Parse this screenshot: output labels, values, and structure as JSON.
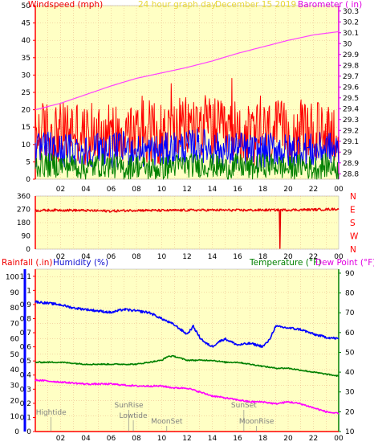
{
  "title": "24 hour graph day",
  "date": "December 15 2019",
  "colors": {
    "background": "#ffffff",
    "plot_bg": "#ffffc4",
    "grid": "#e8b080",
    "title": "#e8d838",
    "wind_label": "#f00000",
    "baro_label": "#e000e0",
    "rain_label": "#f00000",
    "humidity_label": "#1010d0",
    "temp_label": "#008000",
    "dew_label": "#e000e0",
    "wind_speed": "#ff0000",
    "wind_avg": "#0000ff",
    "wind_calm": "#008000",
    "baro_line": "#ff40ff",
    "direction": "#e80000",
    "humidity": "#0000ff",
    "temperature": "#008000",
    "dewpoint": "#ff00ff",
    "event_text": "#808080",
    "axis_red": "#ff0000",
    "axis_blue": "#0000ff",
    "axis_green": "#008000"
  },
  "x_labels": [
    "02",
    "04",
    "06",
    "08",
    "10",
    "12",
    "14",
    "16",
    "18",
    "20",
    "22",
    "00"
  ],
  "panel1": {
    "left_label": "Windspeed (mph)",
    "right_label": "Barometer ( in)",
    "left_ticks": [
      "0",
      "5",
      "10",
      "15",
      "20",
      "25",
      "30",
      "35",
      "40",
      "45",
      "50"
    ],
    "right_ticks": [
      "28.8",
      "28.9",
      "29",
      "29.1",
      "29.2",
      "29.3",
      "29.4",
      "29.5",
      "29.6",
      "29.7",
      "29.8",
      "29.9",
      "30",
      "30.1",
      "30.2",
      "30.3"
    ]
  },
  "panel2": {
    "left_ticks": [
      "0",
      "90",
      "180",
      "270",
      "360"
    ],
    "compass": [
      "N",
      "W",
      "S",
      "E",
      "N"
    ]
  },
  "panel3": {
    "rain_label": "Rainfall (.in)",
    "humidity_label": "Humidity (%)",
    "temp_label": "Temperature (°F)",
    "dew_label": "Dew Point (°F)",
    "rain_ticks": [
      "0",
      "0.1",
      "0.2",
      "0.3",
      "0.4",
      "0.5",
      "0.6",
      "0.7",
      "0.8",
      "0.9",
      "1",
      "1.1"
    ],
    "humidity_ticks": [
      "0",
      "10",
      "20",
      "30",
      "40",
      "50",
      "60",
      "70",
      "80",
      "90",
      "100"
    ],
    "temp_ticks": [
      "10",
      "20",
      "30",
      "40",
      "50",
      "60",
      "70",
      "80",
      "90"
    ],
    "events": [
      {
        "label": "Hightide",
        "t": 1.25,
        "row": 0
      },
      {
        "label": "SunRise",
        "t": 7.4,
        "row": 1
      },
      {
        "label": "Lowtide",
        "t": 7.75,
        "row": 2
      },
      {
        "label": "MoonSet",
        "t": 10.4,
        "row": 3
      },
      {
        "label": "SunSet",
        "t": 16.5,
        "row": 1
      },
      {
        "label": "MoonRise",
        "t": 17.5,
        "row": 3
      }
    ]
  },
  "chart_data": {
    "type": "line",
    "title": "24 hour graph day",
    "subtitle": "December 15 2019",
    "x_unit": "hour",
    "x_range": [
      0,
      24
    ],
    "panels": [
      {
        "name": "wind",
        "ylabel_left": "Windspeed (mph)",
        "ylim_left": [
          0,
          50
        ],
        "ylabel_right": "Barometer ( in)",
        "ylim_right": [
          28.75,
          30.35
        ],
        "series": [
          {
            "axis": "left",
            "x": [
              0,
              1,
              2,
              3,
              4,
              5,
              6,
              7,
              8,
              9,
              10,
              11,
              12,
              13,
              14,
              15,
              16,
              17,
              18,
              19,
              20,
              21,
              22,
              23,
              24
            ],
            "values": [
              13,
              14,
              13,
              15,
              12,
              14,
              13,
              14,
              13,
              14,
              13,
              14,
              15,
              16,
              15,
              13,
              14,
              12,
              13,
              14,
              13,
              14,
              13,
              14,
              13
            ]
          },
          {
            "axis": "left",
            "x": [
              0,
              1,
              2,
              3,
              4,
              5,
              6,
              7,
              8,
              9,
              10,
              11,
              12,
              13,
              14,
              15,
              16,
              17,
              18,
              19,
              20,
              21,
              22,
              23,
              24
            ],
            "values": [
              8,
              9,
              8,
              9,
              8,
              9,
              8,
              9,
              8,
              8,
              8,
              9,
              9,
              10,
              9,
              8,
              9,
              8,
              8,
              9,
              8,
              9,
              8,
              9,
              8
            ]
          },
          {
            "axis": "left",
            "x": [
              0,
              1,
              2,
              3,
              4,
              5,
              6,
              7,
              8,
              9,
              10,
              11,
              12,
              13,
              14,
              15,
              16,
              17,
              18,
              19,
              20,
              21,
              22,
              23,
              24
            ],
            "values": [
              4,
              4,
              4,
              4,
              3,
              4,
              4,
              3,
              4,
              3,
              3,
              4,
              4,
              4,
              4,
              3,
              4,
              3,
              4,
              4,
              3,
              4,
              3,
              4,
              3
            ]
          },
          {
            "axis": "right",
            "x": [
              0,
              2,
              4,
              6,
              8,
              10,
              12,
              14,
              16,
              18,
              20,
              22,
              24
            ],
            "values": [
              29.39,
              29.45,
              29.53,
              29.61,
              29.68,
              29.73,
              29.78,
              29.84,
              29.91,
              29.97,
              30.03,
              30.08,
              30.11
            ]
          }
        ]
      },
      {
        "name": "direction",
        "ylim_left": [
          0,
          360
        ],
        "series": [
          {
            "axis": "left",
            "x": [
              0,
              2,
              4,
              6,
              8,
              10,
              12,
              14,
              16,
              18,
              19.3,
              19.35,
              19.4,
              20,
              22,
              24
            ],
            "values": [
              262,
              265,
              262,
              258,
              264,
              262,
              264,
              265,
              264,
              265,
              266,
              5,
              266,
              266,
              268,
              272
            ]
          }
        ]
      },
      {
        "name": "humidity_temp",
        "ylabel_left_1": "Rainfall (.in)",
        "ylim_left_1": [
          0,
          1.15
        ],
        "ylabel_left_2": "Humidity (%)",
        "ylim_left_2": [
          0,
          105
        ],
        "ylabel_right_1": "Temperature (°F)",
        "ylabel_right_2": "Dew Point (°F)",
        "ylim_right": [
          10,
          92
        ],
        "series": [
          {
            "axis": "left_2",
            "x": [
              0,
              1,
              2,
              3,
              4,
              5,
              6,
              7,
              8,
              9,
              10,
              11,
              12,
              12.5,
              13,
              13.5,
              14,
              14.5,
              15,
              16,
              17,
              18,
              18.5,
              19,
              20,
              21,
              22,
              23,
              24
            ],
            "values": [
              84,
              83,
              82,
              80,
              79,
              78,
              77,
              79,
              78,
              77,
              73,
              69,
              63,
              68,
              61,
              57,
              55,
              58,
              60,
              56,
              57,
              55,
              59,
              68,
              67,
              66,
              63,
              61,
              60
            ]
          },
          {
            "axis": "right",
            "x": [
              0,
              2,
              4,
              6,
              8,
              10,
              10.5,
              11,
              12,
              13,
              14,
              15,
              16,
              17,
              18,
              19,
              20,
              21,
              22,
              23,
              24
            ],
            "values": [
              45,
              45,
              44,
              44,
              44,
              46,
              48,
              48,
              46,
              46,
              46,
              45,
              45,
              44,
              43,
              42,
              42,
              41,
              40,
              39,
              38
            ]
          },
          {
            "axis": "right",
            "x": [
              0,
              2,
              4,
              6,
              8,
              10,
              11,
              12,
              13,
              14,
              15,
              16,
              17,
              18,
              19,
              20,
              21,
              22,
              23,
              24
            ],
            "values": [
              36,
              35,
              34,
              34,
              33,
              33,
              32,
              32,
              30,
              28,
              27,
              26,
              25,
              25,
              24,
              25,
              24,
              22,
              20,
              19
            ]
          }
        ]
      }
    ],
    "annotations": [
      "Hightide",
      "SunRise",
      "Lowtide",
      "MoonSet",
      "SunSet",
      "MoonRise"
    ]
  }
}
